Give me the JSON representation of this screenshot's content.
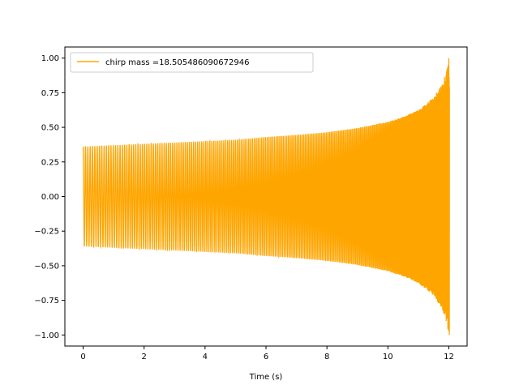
{
  "chart_data": {
    "type": "line",
    "title": "",
    "xlabel": "Time (s)",
    "ylabel": "",
    "xlim": [
      -0.6,
      12.6
    ],
    "ylim": [
      -1.08,
      1.08
    ],
    "x_ticks": [
      0,
      2,
      4,
      6,
      8,
      10,
      12
    ],
    "x_tick_labels": [
      "0",
      "2",
      "4",
      "6",
      "8",
      "10",
      "12"
    ],
    "y_ticks": [
      -1.0,
      -0.75,
      -0.5,
      -0.25,
      0.0,
      0.25,
      0.5,
      0.75,
      1.0
    ],
    "y_tick_labels": [
      "−1.00",
      "−0.75",
      "−0.50",
      "−0.25",
      "0.00",
      "0.25",
      "0.50",
      "0.75",
      "1.00"
    ],
    "grid": false,
    "legend_position": "upper-left",
    "series": [
      {
        "name": "chirp mass =18.505486090672946",
        "color": "#ffa500",
        "t_start": 0.0,
        "t_end": 12.02,
        "envelope_t": [
          0,
          1,
          2,
          3,
          4,
          5,
          6,
          7,
          8,
          9,
          10,
          10.5,
          11,
          11.5,
          11.8,
          11.95,
          12.0
        ],
        "envelope_amp": [
          0.36,
          0.37,
          0.38,
          0.39,
          0.4,
          0.41,
          0.43,
          0.445,
          0.465,
          0.495,
          0.54,
          0.575,
          0.625,
          0.715,
          0.82,
          0.93,
          1.0
        ],
        "oscillation_cycles": 250
      }
    ]
  }
}
